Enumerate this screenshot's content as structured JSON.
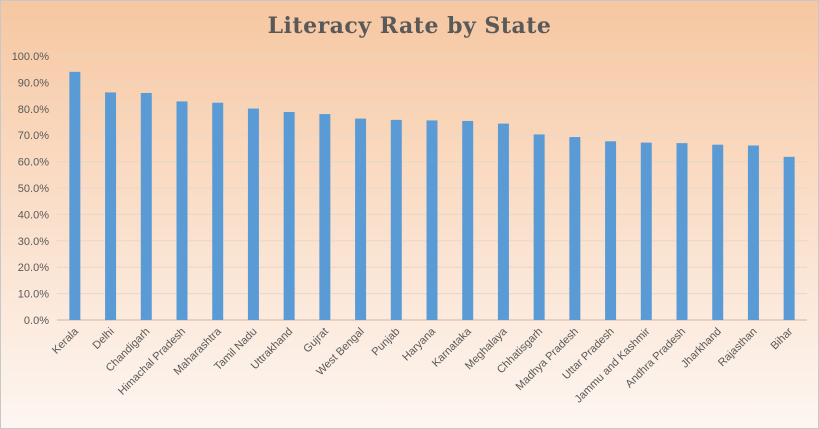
{
  "chart_data": {
    "type": "bar",
    "title": "Literacy Rate by State",
    "xlabel": "",
    "ylabel": "",
    "ylim": [
      0,
      100
    ],
    "y_tick_step": 10,
    "y_tick_format": "percent_1dp",
    "grid": true,
    "legend": "none",
    "bar_color": "#5b9bd5",
    "categories": [
      "Kerala",
      "Delhi",
      "Chandigarh",
      "Himachal Pradesh",
      "Maharashtra",
      "Tamil Nadu",
      "Uttrakhand",
      "Gujrat",
      "West Bengal",
      "Punjab",
      "Haryana",
      "Karnataka",
      "Meghalaya",
      "Chhatisgarh",
      "Madhya Pradesh",
      "Uttar Pradesh",
      "Jammu and Kashmir",
      "Andhra Pradesh",
      "Jharkhand",
      "Rajasthan",
      "Bihar"
    ],
    "values": [
      94.0,
      86.2,
      86.0,
      82.8,
      82.3,
      80.1,
      78.8,
      78.0,
      76.3,
      75.8,
      75.6,
      75.4,
      74.4,
      70.3,
      69.3,
      67.7,
      67.2,
      67.0,
      66.4,
      66.1,
      61.8
    ]
  }
}
